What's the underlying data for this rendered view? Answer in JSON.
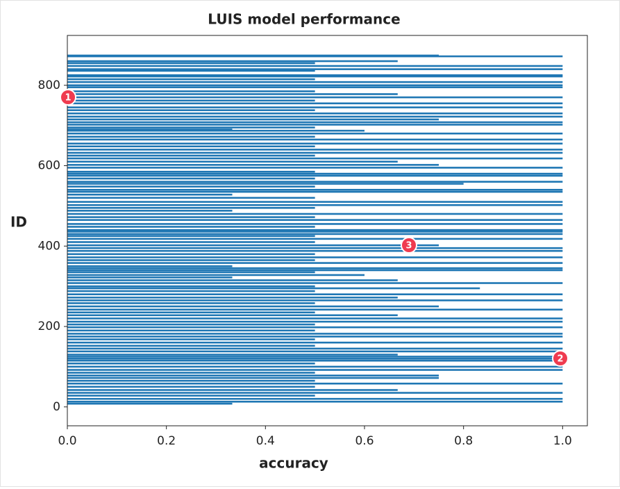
{
  "chart_data": {
    "type": "barh",
    "title": "LUIS model performance",
    "x_label": "accuracy",
    "y_label": "ID",
    "color": "#1f77b4",
    "ids": [
      874,
      872,
      860,
      855,
      848,
      840,
      836,
      825,
      822,
      815,
      808,
      800,
      795,
      785,
      778,
      770,
      762,
      755,
      745,
      738,
      730,
      722,
      715,
      708,
      702,
      695,
      690,
      687,
      680,
      672,
      665,
      655,
      648,
      640,
      632,
      625,
      618,
      610,
      602,
      595,
      585,
      580,
      575,
      568,
      560,
      555,
      548,
      540,
      535,
      528,
      520,
      510,
      502,
      495,
      488,
      480,
      472,
      465,
      455,
      448,
      440,
      436,
      430,
      425,
      418,
      410,
      402,
      395,
      388,
      380,
      372,
      365,
      358,
      350,
      345,
      340,
      335,
      328,
      322,
      315,
      308,
      300,
      295,
      288,
      280,
      272,
      265,
      258,
      250,
      242,
      235,
      228,
      220,
      212,
      205,
      198,
      190,
      182,
      175,
      168,
      160,
      152,
      145,
      138,
      130,
      125,
      120,
      115,
      108,
      100,
      92,
      85,
      78,
      72,
      65,
      58,
      50,
      42,
      35,
      28,
      20,
      13,
      8
    ],
    "values": [
      0.75,
      1.0,
      0.667,
      0.5,
      1.0,
      1.0,
      0.5,
      1.0,
      1.0,
      0.5,
      1.0,
      1.0,
      1.0,
      0.5,
      0.667,
      1.0,
      0.5,
      1.0,
      1.0,
      0.5,
      1.0,
      1.0,
      0.75,
      1.0,
      1.0,
      0.5,
      0.333,
      0.6,
      1.0,
      0.5,
      1.0,
      1.0,
      0.5,
      1.0,
      1.0,
      0.5,
      1.0,
      0.667,
      0.75,
      1.0,
      0.5,
      1.0,
      1.0,
      0.5,
      1.0,
      0.8,
      0.5,
      1.0,
      1.0,
      0.333,
      0.5,
      1.0,
      1.0,
      0.5,
      0.333,
      1.0,
      0.5,
      1.0,
      1.0,
      0.5,
      1.0,
      1.0,
      1.0,
      0.5,
      1.0,
      0.5,
      0.75,
      1.0,
      1.0,
      0.5,
      1.0,
      0.5,
      1.0,
      0.333,
      1.0,
      1.0,
      0.5,
      0.6,
      0.333,
      0.667,
      1.0,
      0.5,
      0.833,
      0.5,
      1.0,
      0.667,
      1.0,
      0.5,
      0.75,
      1.0,
      0.5,
      0.667,
      1.0,
      1.0,
      0.5,
      1.0,
      0.5,
      1.0,
      1.0,
      0.5,
      1.0,
      0.5,
      1.0,
      1.0,
      0.667,
      1.0,
      1.0,
      1.0,
      0.5,
      1.0,
      1.0,
      0.5,
      0.75,
      0.75,
      0.5,
      1.0,
      0.5,
      0.667,
      1.0,
      0.5,
      1.0,
      1.0,
      0.333
    ],
    "xlim": [
      0,
      1.05
    ],
    "ylim": [
      -47,
      924
    ],
    "xticks": [
      {
        "value": 0,
        "label": "0.0"
      },
      0.2,
      0.4,
      0.6,
      0.8,
      {
        "value": 1,
        "label": "1.0"
      }
    ],
    "yticks": [
      0,
      200,
      400,
      600,
      800
    ],
    "annotations": [
      "1",
      "2",
      "3"
    ]
  }
}
